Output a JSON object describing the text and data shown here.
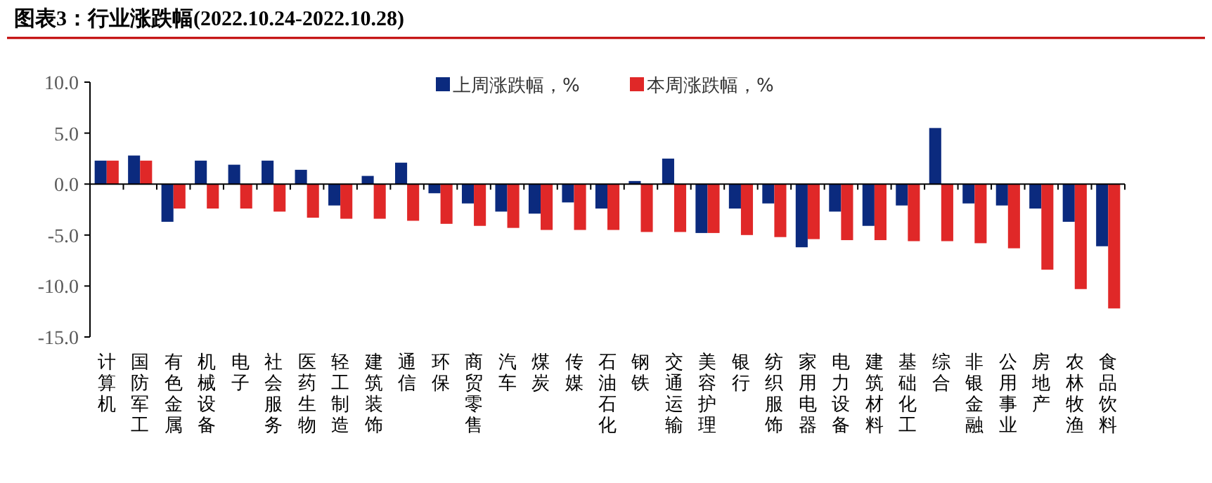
{
  "chart_data": {
    "type": "bar",
    "title": "图表3：行业涨跌幅(2022.10.24-2022.10.28)",
    "categories": [
      "计算机",
      "国防军工",
      "有色金属",
      "机械设备",
      "电子",
      "社会服务",
      "医药生物",
      "轻工制造",
      "建筑装饰",
      "通信",
      "环保",
      "商贸零售",
      "汽车",
      "煤炭",
      "传媒",
      "石油石化",
      "钢铁",
      "交通运输",
      "美容护理",
      "银行",
      "纺织服饰",
      "家用电器",
      "电力设备",
      "建筑材料",
      "基础化工",
      "综合",
      "非银金融",
      "公用事业",
      "房地产",
      "农林牧渔",
      "食品饮料"
    ],
    "series": [
      {
        "name": "上周涨跌幅，%",
        "color": "#0b2a7e",
        "values": [
          2.3,
          2.8,
          -3.7,
          2.3,
          1.9,
          2.3,
          1.4,
          -2.1,
          0.8,
          2.1,
          -0.9,
          -1.9,
          -2.7,
          -2.9,
          -1.8,
          -2.4,
          0.3,
          2.5,
          -4.8,
          -2.4,
          -1.9,
          -6.2,
          -2.7,
          -4.1,
          -2.1,
          5.5,
          -1.9,
          -2.1,
          -2.4,
          -3.7,
          -6.1
        ]
      },
      {
        "name": "本周涨跌幅，%",
        "color": "#e02828",
        "values": [
          2.3,
          2.3,
          -2.4,
          -2.4,
          -2.4,
          -2.7,
          -3.3,
          -3.4,
          -3.4,
          -3.6,
          -3.9,
          -4.1,
          -4.3,
          -4.5,
          -4.5,
          -4.5,
          -4.7,
          -4.7,
          -4.8,
          -5.0,
          -5.2,
          -5.4,
          -5.5,
          -5.5,
          -5.6,
          -5.6,
          -5.8,
          -6.3,
          -8.4,
          -10.3,
          -12.2
        ]
      }
    ],
    "ylim": [
      -15,
      10
    ],
    "yticks": [
      {
        "value": -15,
        "label": "-15.0"
      },
      {
        "value": -10,
        "label": "-10.0"
      },
      {
        "value": -5,
        "label": "-5.0"
      },
      {
        "value": 0,
        "label": "0.0"
      },
      {
        "value": 5,
        "label": "5.0"
      },
      {
        "value": 10,
        "label": "10.0"
      }
    ],
    "legend": "top right"
  }
}
